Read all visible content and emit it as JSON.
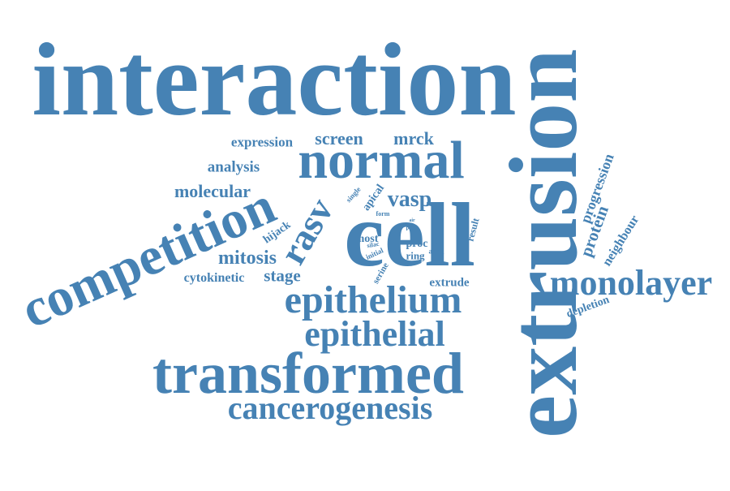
{
  "accent_color": "#4682b4",
  "words": [
    {
      "text": "interaction",
      "size": "large"
    },
    {
      "text": "extrusion",
      "size": "large"
    },
    {
      "text": "cell",
      "size": "large"
    },
    {
      "text": "normal",
      "size": "medium-large"
    },
    {
      "text": "competition",
      "size": "medium-large"
    },
    {
      "text": "transformed",
      "size": "medium-large"
    },
    {
      "text": "epithelium",
      "size": "medium"
    },
    {
      "text": "epithelial",
      "size": "medium"
    },
    {
      "text": "monolayer",
      "size": "medium"
    },
    {
      "text": "cancerogenesis",
      "size": "medium"
    },
    {
      "text": "rasv",
      "size": "medium"
    },
    {
      "text": "vasp",
      "size": "small-medium"
    },
    {
      "text": "screen",
      "size": "small-medium"
    },
    {
      "text": "mrck",
      "size": "small-medium"
    },
    {
      "text": "expression",
      "size": "small"
    },
    {
      "text": "analysis",
      "size": "small"
    },
    {
      "text": "molecular",
      "size": "small-medium"
    },
    {
      "text": "mitosis",
      "size": "small-medium"
    },
    {
      "text": "stage",
      "size": "small-medium"
    },
    {
      "text": "cytokinetic",
      "size": "small"
    },
    {
      "text": "progression",
      "size": "small"
    },
    {
      "text": "protein",
      "size": "small"
    },
    {
      "text": "neighbour",
      "size": "small"
    },
    {
      "text": "depletion",
      "size": "small"
    },
    {
      "text": "extrude",
      "size": "small"
    },
    {
      "text": "hijack",
      "size": "small"
    },
    {
      "text": "apical",
      "size": "tiny"
    },
    {
      "text": "single",
      "size": "tiny"
    },
    {
      "text": "most",
      "size": "tiny"
    },
    {
      "text": "proc",
      "size": "tiny"
    },
    {
      "text": "ring",
      "size": "tiny"
    },
    {
      "text": "actin",
      "size": "tiny"
    },
    {
      "text": "initial",
      "size": "tiny"
    },
    {
      "text": "silac",
      "size": "tiny"
    },
    {
      "text": "cycle",
      "size": "tiny"
    },
    {
      "text": "result",
      "size": "tiny"
    },
    {
      "text": "form",
      "size": "tiny"
    },
    {
      "text": "air",
      "size": "tiny"
    },
    {
      "text": "part",
      "size": "tiny"
    },
    {
      "text": "serine",
      "size": "tiny"
    }
  ]
}
